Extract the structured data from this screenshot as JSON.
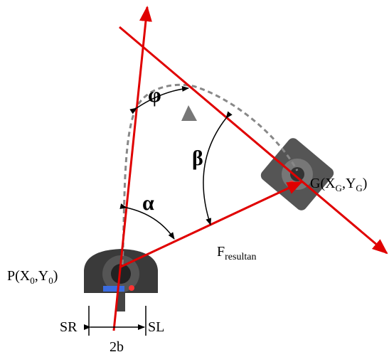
{
  "labels": {
    "phi": "φ",
    "beta": "β",
    "alpha": "α",
    "force": {
      "main": "F",
      "sub": "resultan"
    },
    "start": [
      "P(X",
      "0",
      ",Y",
      "0",
      ")"
    ],
    "goal": [
      "G(X",
      "G",
      ",Y",
      "G",
      ")"
    ],
    "sr": "SR",
    "sl": "SL",
    "width": "2b"
  }
}
